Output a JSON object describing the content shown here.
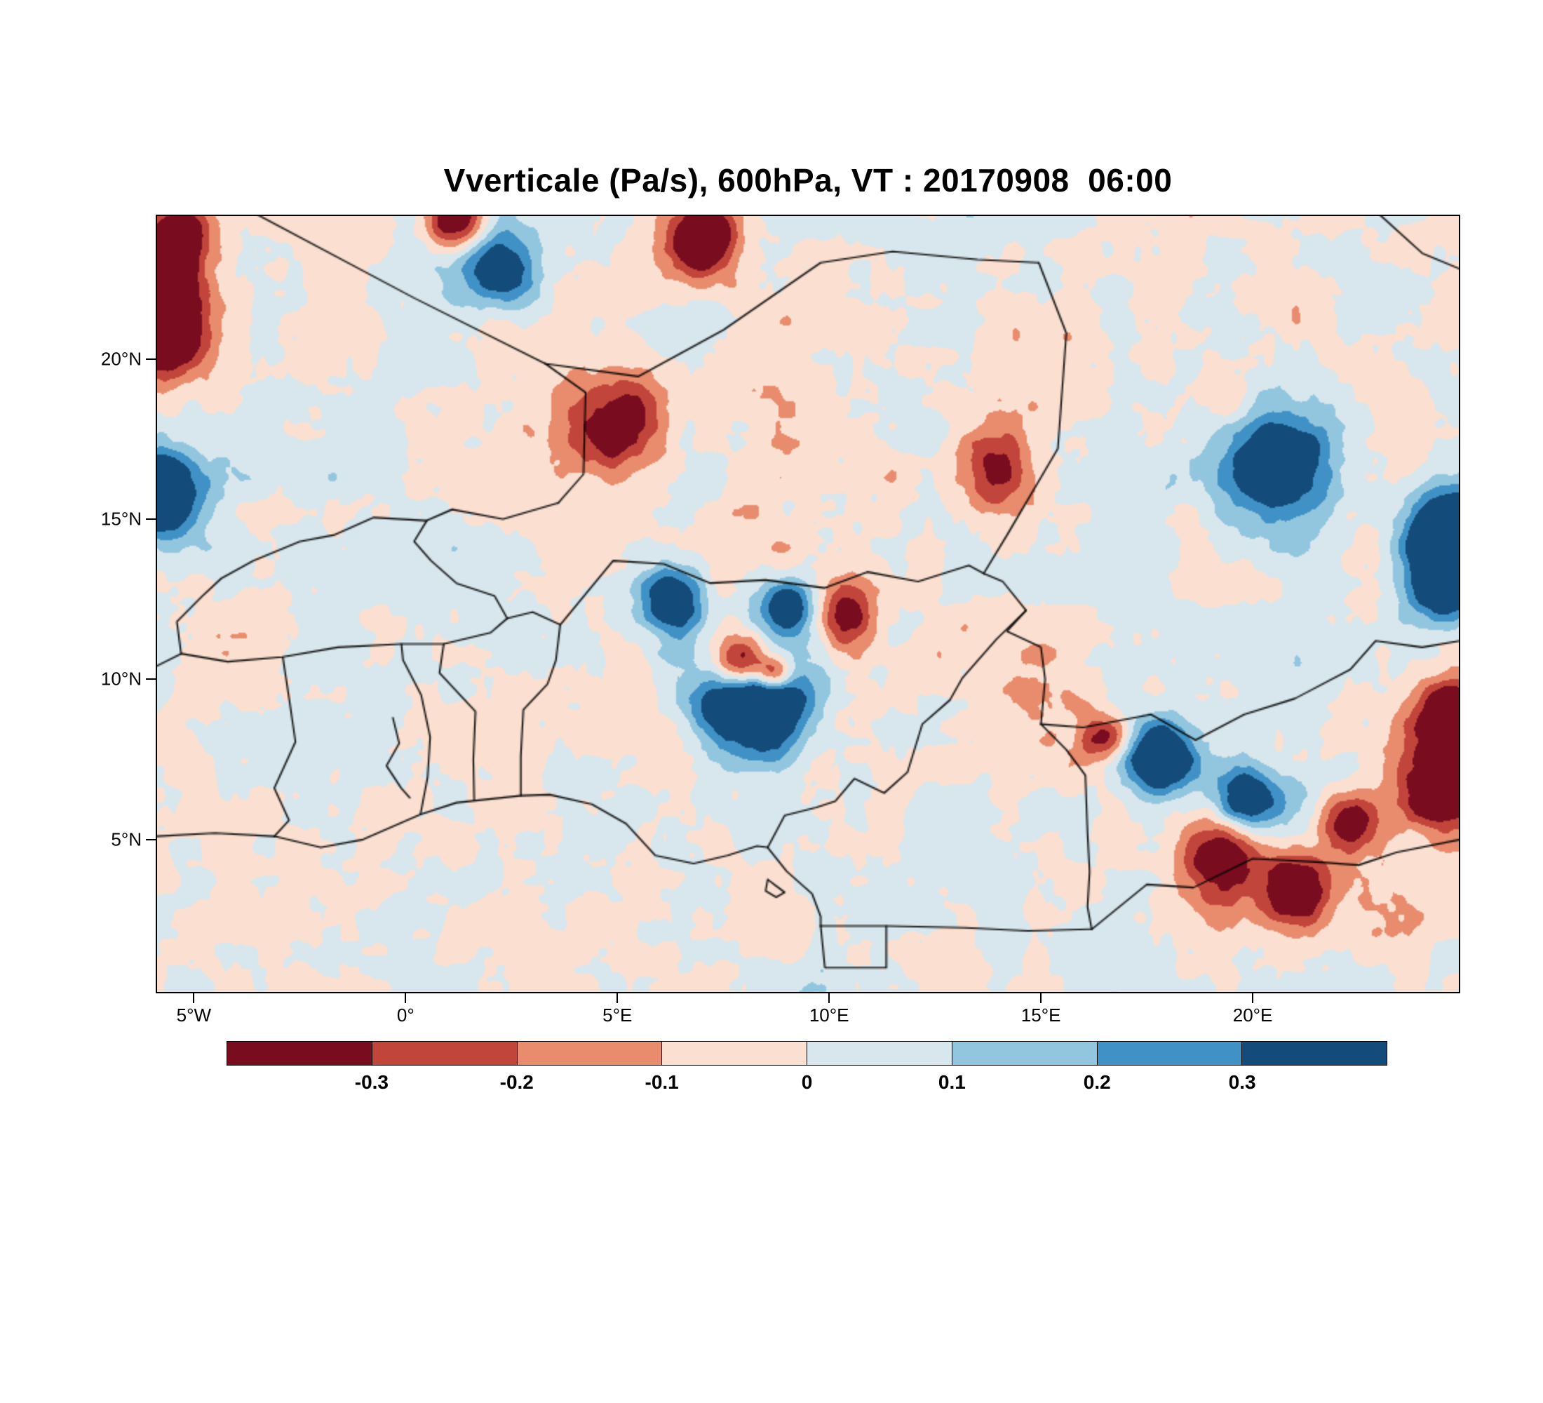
{
  "chart_data": {
    "type": "heatmap",
    "title": "Vverticale (Pa/s), 600hPa, VT : 20170908  06:00",
    "variable": "Vverticale",
    "units": "Pa/s",
    "level": "600hPa",
    "valid_time": "20170908 06:00",
    "legend_position": "bottom",
    "grid": false,
    "x_axis": {
      "range": [
        -5.9,
        24.9
      ],
      "ticks": [
        {
          "value": -5,
          "label": "5°W"
        },
        {
          "value": 0,
          "label": "0°"
        },
        {
          "value": 5,
          "label": "5°E"
        },
        {
          "value": 10,
          "label": "10°E"
        },
        {
          "value": 15,
          "label": "15°E"
        },
        {
          "value": 20,
          "label": "20°E"
        }
      ]
    },
    "y_axis": {
      "range": [
        0.2,
        24.5
      ],
      "ticks": [
        {
          "value": 5,
          "label": "5°N"
        },
        {
          "value": 10,
          "label": "10°N"
        },
        {
          "value": 15,
          "label": "15°N"
        },
        {
          "value": 20,
          "label": "20°N"
        }
      ]
    },
    "colorbar": {
      "levels": [
        -0.3,
        -0.2,
        -0.1,
        0,
        0.1,
        0.2,
        0.3
      ],
      "labels": [
        "-0.3",
        "-0.2",
        "-0.1",
        "0",
        "0.1",
        "0.2",
        "0.3"
      ],
      "colors": [
        "#7a0c20",
        "#c2453c",
        "#e98b6d",
        "#fbe0d1",
        "#d8e7ee",
        "#92c5de",
        "#4091c5",
        "#134b7a"
      ]
    },
    "texture": {
      "seed": 11,
      "octaves": [
        [
          0.016,
          0.42
        ],
        [
          0.038,
          0.3
        ],
        [
          0.08,
          0.18
        ],
        [
          0.16,
          0.1
        ]
      ],
      "scale": 0.17,
      "bias": -0.008
    },
    "features_format": [
      "lon",
      "lat",
      "value_pa_s",
      "radius_deg"
    ],
    "features": [
      [
        8.1,
        9.4,
        0.8,
        0.85
      ],
      [
        7.9,
        10.5,
        -0.75,
        0.5
      ],
      [
        8.7,
        10.2,
        -0.5,
        0.3
      ],
      [
        6.3,
        12.5,
        0.5,
        0.55
      ],
      [
        9.0,
        12.3,
        0.55,
        0.45
      ],
      [
        10.4,
        12.0,
        -0.4,
        0.5
      ],
      [
        -5.8,
        21.0,
        -0.65,
        0.8
      ],
      [
        -5.8,
        22.6,
        -0.55,
        0.6
      ],
      [
        -5.75,
        15.8,
        0.6,
        0.7
      ],
      [
        -5.3,
        23.9,
        -0.5,
        0.5
      ],
      [
        2.2,
        22.8,
        0.45,
        0.7
      ],
      [
        7.0,
        23.8,
        -0.55,
        0.6
      ],
      [
        1.2,
        24.3,
        -0.5,
        0.5
      ],
      [
        5.0,
        17.8,
        -0.4,
        0.8
      ],
      [
        20.6,
        16.6,
        0.5,
        0.9
      ],
      [
        24.6,
        14.5,
        0.7,
        0.8
      ],
      [
        24.6,
        12.8,
        0.5,
        0.6
      ],
      [
        24.6,
        6.8,
        -0.6,
        0.8
      ],
      [
        24.6,
        9.0,
        -0.4,
        0.5
      ],
      [
        17.8,
        7.6,
        0.6,
        0.55
      ],
      [
        19.9,
        6.3,
        0.5,
        0.55
      ],
      [
        19.2,
        4.5,
        -0.5,
        0.7
      ],
      [
        21.0,
        3.5,
        -0.5,
        0.6
      ],
      [
        22.3,
        5.5,
        -0.4,
        0.5
      ],
      [
        16.5,
        8.2,
        -0.4,
        0.4
      ],
      [
        13.9,
        16.5,
        -0.35,
        0.7
      ]
    ],
    "borders": [
      [
        [
          -3.5,
          24.5
        ],
        [
          0.2,
          21.9
        ],
        [
          3.3,
          19.85
        ]
      ],
      [
        [
          3.3,
          19.85
        ],
        [
          4.25,
          18.95
        ],
        [
          4.2,
          16.4
        ],
        [
          3.6,
          15.5
        ]
      ],
      [
        [
          3.6,
          15.5
        ],
        [
          2.3,
          15.0
        ],
        [
          1.1,
          15.3
        ],
        [
          0.5,
          14.95
        ],
        [
          -0.75,
          15.05
        ],
        [
          -1.7,
          14.5
        ],
        [
          -2.5,
          14.3
        ],
        [
          -3.6,
          13.7
        ],
        [
          -4.35,
          13.15
        ],
        [
          -4.8,
          12.6
        ],
        [
          -5.4,
          11.8
        ],
        [
          -5.3,
          10.8
        ],
        [
          -5.9,
          10.4
        ]
      ],
      [
        [
          0.5,
          14.95
        ],
        [
          0.2,
          14.3
        ],
        [
          0.6,
          13.7
        ],
        [
          1.2,
          13.0
        ],
        [
          2.1,
          12.6
        ],
        [
          2.4,
          11.9
        ]
      ],
      [
        [
          -5.3,
          10.8
        ],
        [
          -4.2,
          10.55
        ],
        [
          -2.9,
          10.7
        ],
        [
          -1.6,
          11.0
        ],
        [
          -0.1,
          11.1
        ],
        [
          0.9,
          11.1
        ],
        [
          2.0,
          11.45
        ],
        [
          2.4,
          11.9
        ]
      ],
      [
        [
          2.4,
          11.9
        ],
        [
          3.0,
          12.1
        ],
        [
          3.65,
          11.7
        ],
        [
          4.9,
          13.7
        ],
        [
          6.1,
          13.6
        ],
        [
          7.2,
          13.0
        ],
        [
          8.5,
          13.1
        ],
        [
          9.9,
          12.85
        ],
        [
          10.9,
          13.35
        ],
        [
          12.1,
          13.05
        ],
        [
          13.3,
          13.55
        ],
        [
          13.65,
          13.3
        ]
      ],
      [
        [
          2.72,
          6.37
        ],
        [
          2.72,
          7.6
        ],
        [
          2.78,
          9.05
        ],
        [
          3.35,
          9.85
        ],
        [
          3.55,
          10.6
        ],
        [
          3.65,
          11.7
        ]
      ],
      [
        [
          1.62,
          6.22
        ],
        [
          1.6,
          7.5
        ],
        [
          1.65,
          9.0
        ],
        [
          0.8,
          10.2
        ],
        [
          0.9,
          11.1
        ]
      ],
      [
        [
          0.35,
          5.78
        ],
        [
          0.52,
          6.95
        ],
        [
          0.58,
          8.2
        ],
        [
          0.37,
          9.5
        ],
        [
          -0.06,
          10.6
        ],
        [
          -0.1,
          11.1
        ]
      ],
      [
        [
          -3.1,
          5.1
        ],
        [
          -2.75,
          5.6
        ],
        [
          -3.1,
          6.6
        ],
        [
          -2.6,
          8.05
        ],
        [
          -2.75,
          9.4
        ],
        [
          -2.9,
          10.7
        ]
      ],
      [
        [
          3.3,
          19.85
        ],
        [
          5.5,
          19.45
        ],
        [
          7.5,
          20.9
        ],
        [
          9.8,
          23.0
        ],
        [
          11.5,
          23.35
        ],
        [
          13.5,
          23.1
        ],
        [
          14.95,
          23.0
        ]
      ],
      [
        [
          14.95,
          23.0
        ],
        [
          15.6,
          20.8
        ],
        [
          15.4,
          17.2
        ],
        [
          14.2,
          14.5
        ],
        [
          13.65,
          13.3
        ]
      ],
      [
        [
          13.65,
          13.3
        ],
        [
          14.1,
          13.05
        ],
        [
          14.65,
          12.15
        ],
        [
          14.2,
          11.5
        ],
        [
          15.0,
          11.0
        ],
        [
          15.1,
          10.0
        ],
        [
          15.0,
          8.6
        ]
      ],
      [
        [
          14.65,
          12.15
        ],
        [
          13.95,
          11.25
        ],
        [
          13.15,
          10.05
        ],
        [
          12.85,
          9.35
        ],
        [
          12.2,
          8.6
        ],
        [
          11.85,
          7.1
        ],
        [
          11.3,
          6.45
        ],
        [
          10.6,
          6.9
        ],
        [
          10.15,
          6.2
        ],
        [
          9.7,
          6.0
        ],
        [
          8.95,
          5.75
        ],
        [
          8.55,
          4.75
        ]
      ],
      [
        [
          15.0,
          8.6
        ],
        [
          16.0,
          8.5
        ],
        [
          17.6,
          8.9
        ],
        [
          18.65,
          8.1
        ],
        [
          19.8,
          8.9
        ],
        [
          21.0,
          9.4
        ],
        [
          22.3,
          10.3
        ],
        [
          22.9,
          11.2
        ],
        [
          24.0,
          11.0
        ],
        [
          24.9,
          11.2
        ]
      ],
      [
        [
          15.0,
          8.6
        ],
        [
          15.6,
          7.8
        ],
        [
          16.05,
          7.0
        ],
        [
          16.1,
          5.2
        ],
        [
          16.15,
          4.0
        ],
        [
          16.1,
          2.9
        ],
        [
          16.2,
          2.2
        ]
      ],
      [
        [
          9.8,
          2.3
        ],
        [
          11.35,
          2.3
        ],
        [
          13.2,
          2.25
        ],
        [
          14.7,
          2.15
        ],
        [
          16.2,
          2.2
        ]
      ],
      [
        [
          9.8,
          2.3
        ],
        [
          9.9,
          1.0
        ],
        [
          11.35,
          1.0
        ],
        [
          11.35,
          2.3
        ]
      ],
      [
        [
          16.2,
          2.2
        ],
        [
          17.5,
          3.6
        ],
        [
          18.6,
          3.5
        ],
        [
          20.0,
          4.4
        ],
        [
          21.5,
          4.3
        ],
        [
          22.5,
          4.2
        ],
        [
          23.4,
          4.6
        ],
        [
          24.9,
          5.0
        ]
      ],
      [
        [
          23.0,
          24.5
        ],
        [
          24.0,
          23.3
        ],
        [
          24.9,
          22.8
        ]
      ],
      [
        [
          -5.9,
          5.1
        ],
        [
          -4.5,
          5.2
        ],
        [
          -3.1,
          5.1
        ],
        [
          -2.0,
          4.75
        ],
        [
          -1.0,
          5.0
        ],
        [
          0.35,
          5.78
        ],
        [
          1.2,
          6.15
        ],
        [
          2.72,
          6.37
        ],
        [
          3.4,
          6.4
        ],
        [
          4.4,
          6.1
        ],
        [
          5.2,
          5.5
        ],
        [
          5.9,
          4.5
        ],
        [
          6.8,
          4.25
        ],
        [
          7.6,
          4.5
        ],
        [
          8.3,
          4.8
        ],
        [
          8.55,
          4.75
        ],
        [
          9.0,
          4.0
        ],
        [
          9.6,
          3.3
        ],
        [
          9.8,
          2.6
        ],
        [
          9.8,
          2.3
        ]
      ],
      [
        [
          -0.3,
          8.8
        ],
        [
          -0.15,
          8.0
        ],
        [
          -0.45,
          7.3
        ],
        [
          -0.1,
          6.6
        ],
        [
          0.1,
          6.3
        ]
      ],
      [
        [
          8.55,
          3.75
        ],
        [
          8.75,
          3.55
        ],
        [
          8.95,
          3.35
        ],
        [
          8.75,
          3.2
        ],
        [
          8.5,
          3.4
        ],
        [
          8.55,
          3.75
        ]
      ]
    ]
  }
}
